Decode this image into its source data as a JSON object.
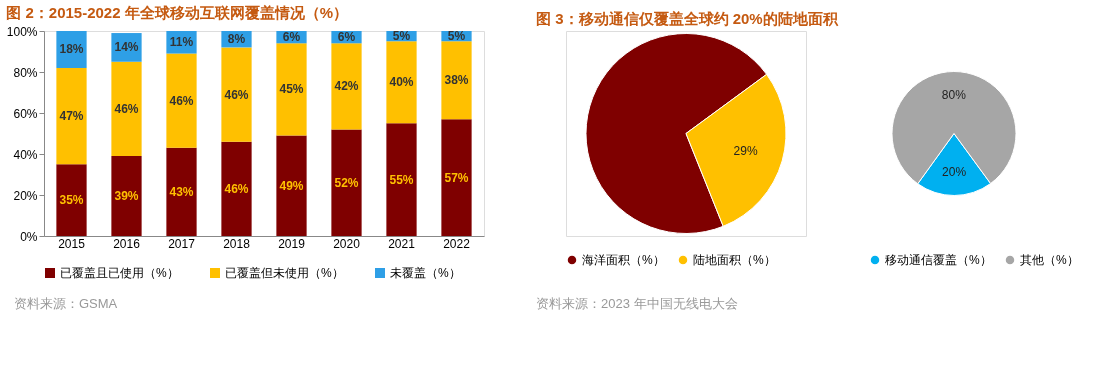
{
  "chart_data": [
    {
      "type": "bar",
      "title": "图 2：2015-2022 年全球移动互联网覆盖情况（%）",
      "categories": [
        "2015",
        "2016",
        "2017",
        "2018",
        "2019",
        "2020",
        "2021",
        "2022"
      ],
      "stacked": true,
      "series": [
        {
          "name": "已覆盖且已使用（%）",
          "color": "#7f0000",
          "values": [
            35,
            39,
            43,
            46,
            49,
            52,
            55,
            57
          ],
          "value_labels": [
            "35%",
            "39%",
            "43%",
            "46%",
            "49%",
            "52%",
            "55%",
            "57%"
          ]
        },
        {
          "name": "已覆盖但未使用（%）",
          "color": "#ffc000",
          "values": [
            47,
            46,
            46,
            46,
            45,
            42,
            40,
            38
          ],
          "value_labels": [
            "47%",
            "46%",
            "46%",
            "46%",
            "45%",
            "42%",
            "40%",
            "38%"
          ]
        },
        {
          "name": "未覆盖（%）",
          "color": "#2e9fe6",
          "values": [
            18,
            14,
            11,
            8,
            6,
            6,
            5,
            5
          ],
          "value_labels": [
            "18%",
            "14%",
            "11%",
            "8%",
            "6%",
            "6%",
            "5%",
            "5%"
          ]
        }
      ],
      "ylim": [
        0,
        100
      ],
      "yticks": [
        {
          "value": 0,
          "label": "0%"
        },
        {
          "value": 20,
          "label": "20%"
        },
        {
          "value": 40,
          "label": "40%"
        },
        {
          "value": 60,
          "label": "60%"
        },
        {
          "value": 80,
          "label": "80%"
        },
        {
          "value": 100,
          "label": "100%"
        }
      ],
      "grid": false,
      "legend": "bottom",
      "annotations": [
        "资料来源：GSMA"
      ]
    },
    {
      "type": "pie",
      "title": "图 3：移动通信仅覆盖全球约 20%的陆地面积",
      "categories": [
        "海洋面积（%）",
        "陆地面积（%）"
      ],
      "values": [
        71,
        29
      ],
      "colors": [
        "#7f0000",
        "#ffc000"
      ],
      "value_labels": [
        null,
        "29%"
      ],
      "legend": "bottom",
      "annotations": [
        "资料来源：2023 年中国无线电大会"
      ]
    },
    {
      "type": "pie",
      "categories": [
        "移动通信覆盖（%）",
        "其他（%）"
      ],
      "values": [
        20,
        80
      ],
      "colors": [
        "#00b0f0",
        "#a6a6a6"
      ],
      "value_labels": [
        "20%",
        "80%"
      ],
      "legend": "bottom"
    }
  ]
}
